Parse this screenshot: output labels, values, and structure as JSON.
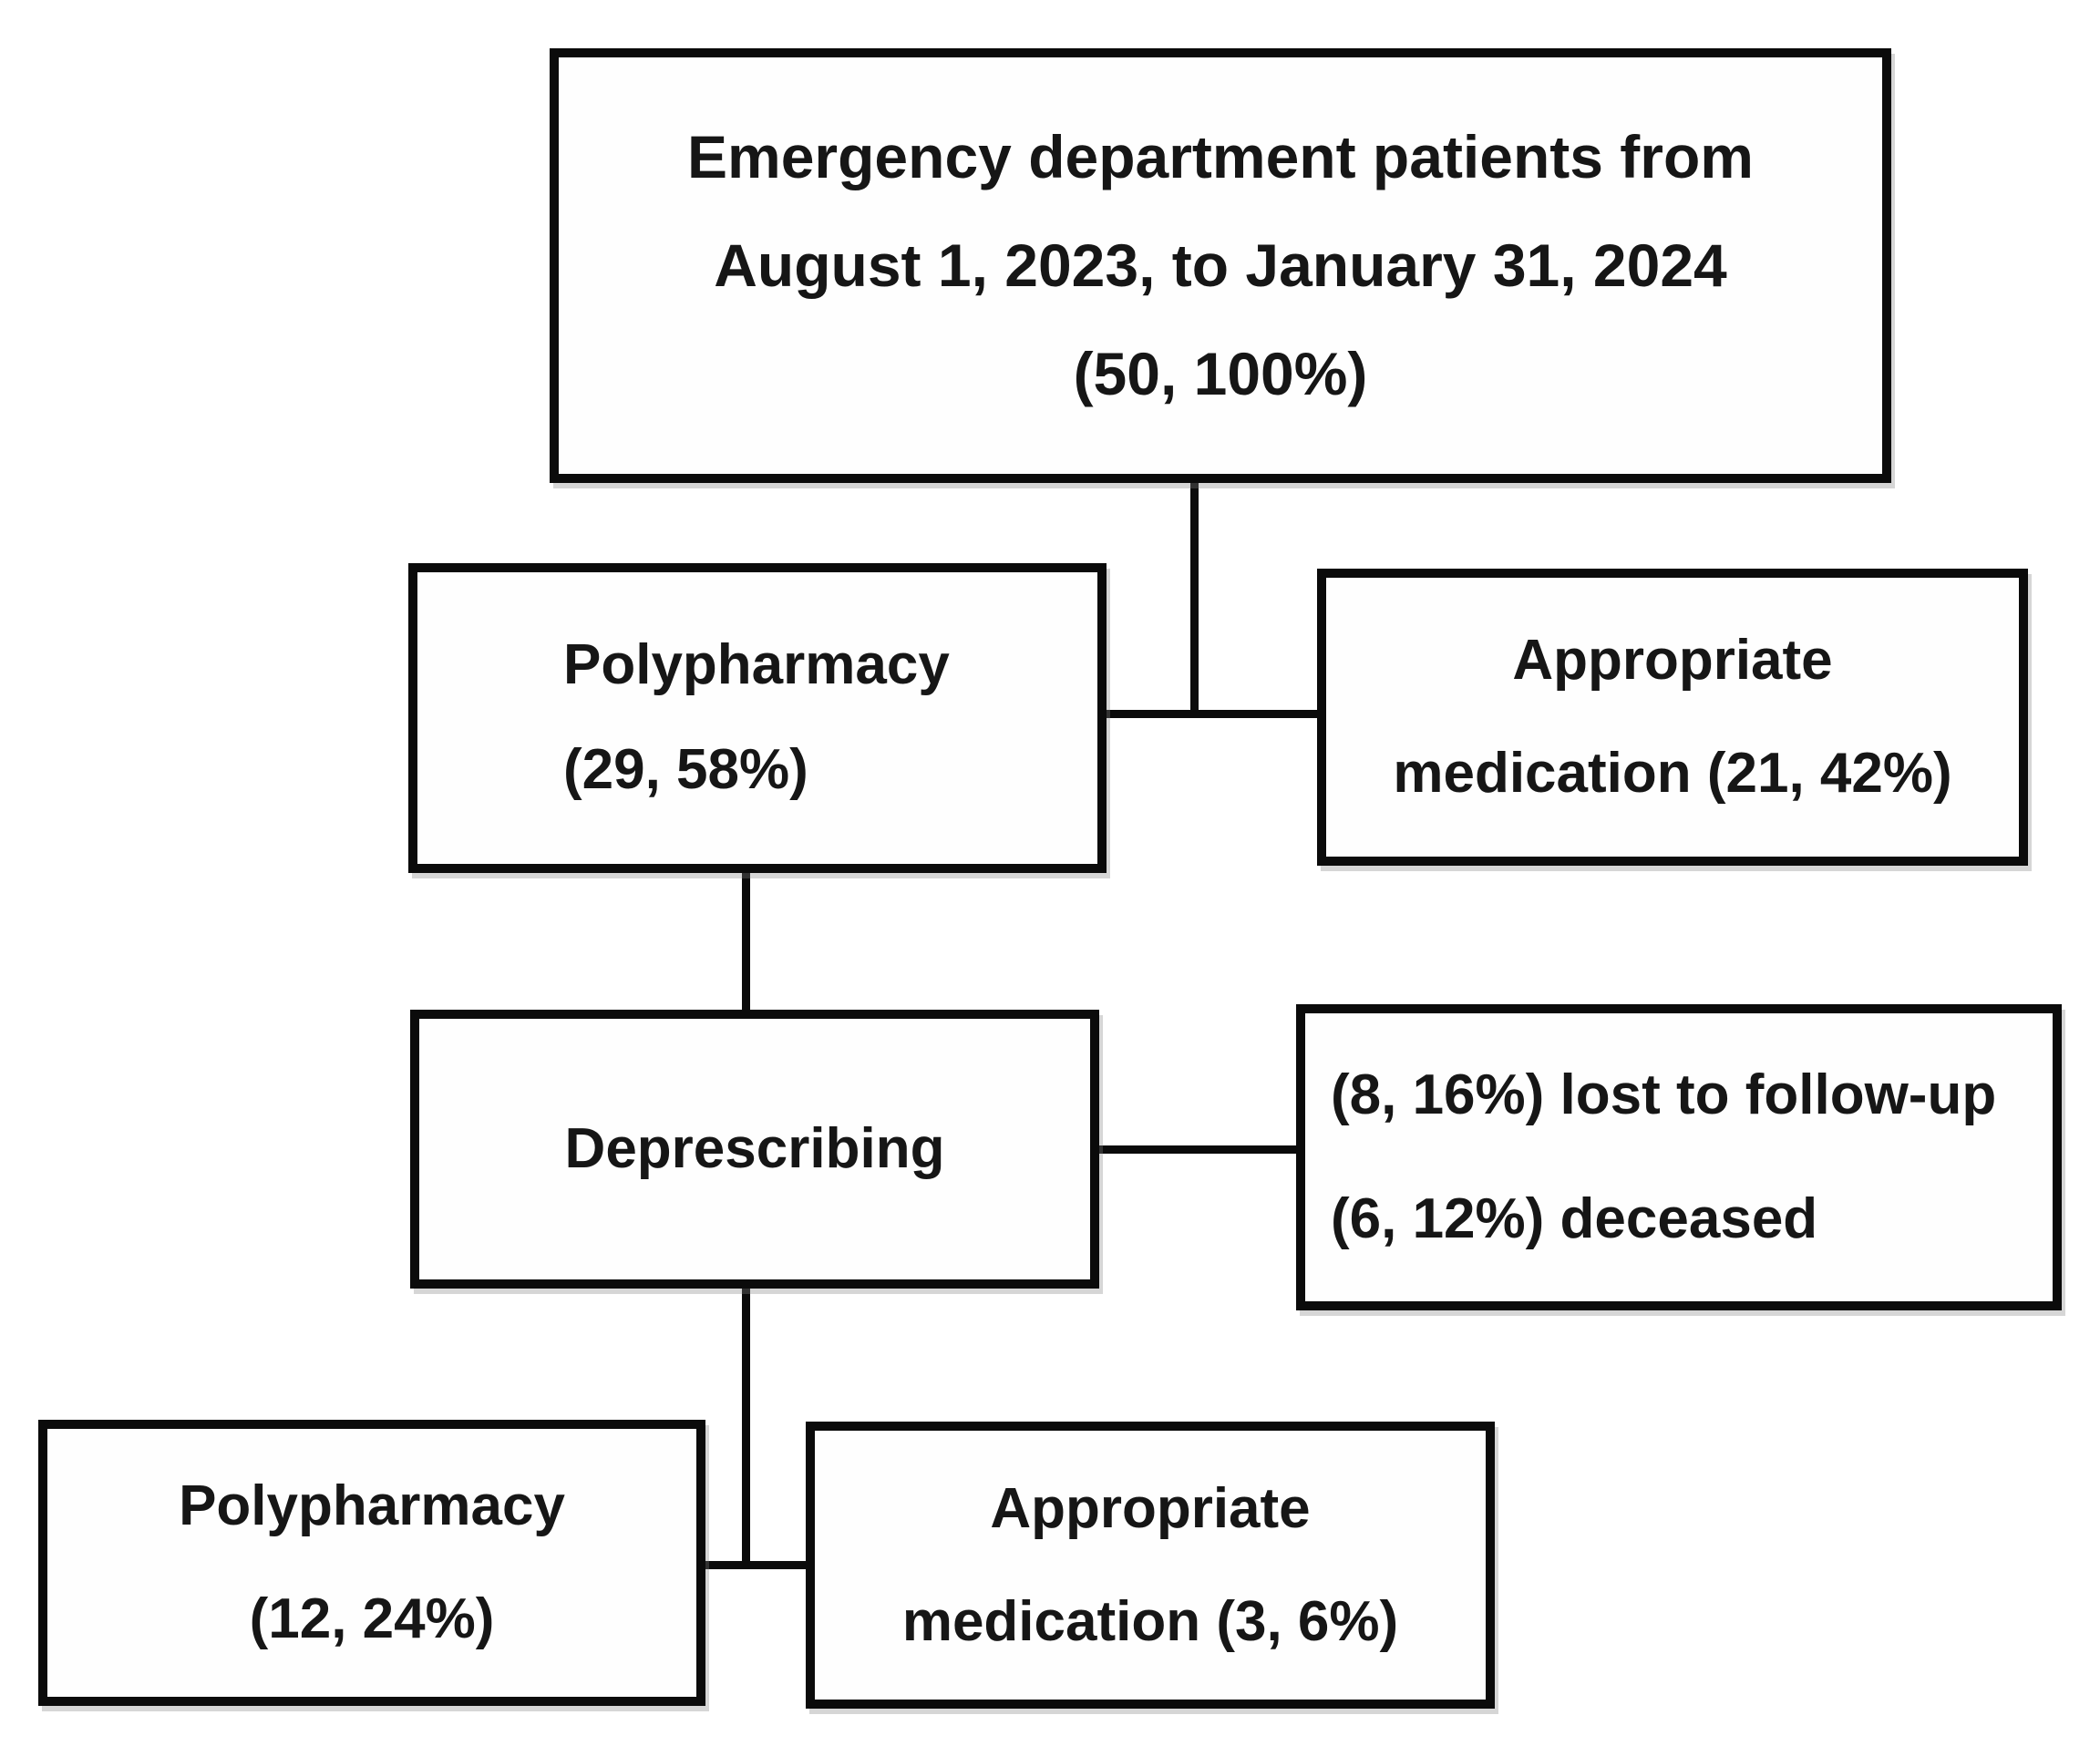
{
  "figure": {
    "type": "flow-diagram",
    "description_levels": 4
  },
  "nodes": {
    "ed_patients": {
      "lines": [
        "Emergency department patients from",
        "August 1, 2023, to January 31, 2024",
        "(50, 100%)"
      ]
    },
    "polypharmacy": {
      "lines": [
        "Polypharmacy",
        "(29, 58%)"
      ]
    },
    "appropriate": {
      "lines": [
        "Appropriate",
        "medication (21, 42%)"
      ]
    },
    "deprescribing": {
      "lines": [
        "Deprescribing"
      ]
    },
    "attrition": {
      "lines": [
        "(8, 16%) lost to follow-up",
        "(6, 12%) deceased"
      ]
    },
    "polypharmacy_followup": {
      "lines": [
        "Polypharmacy",
        "(12, 24%)"
      ]
    },
    "appropriate_followup": {
      "lines": [
        "Appropriate",
        "medication (3, 6%)"
      ]
    }
  },
  "colors": {
    "line_color": "#0b0b0b",
    "text_color": "#161616",
    "background_color": "#ffffff",
    "box_fill": "#fefefe"
  }
}
